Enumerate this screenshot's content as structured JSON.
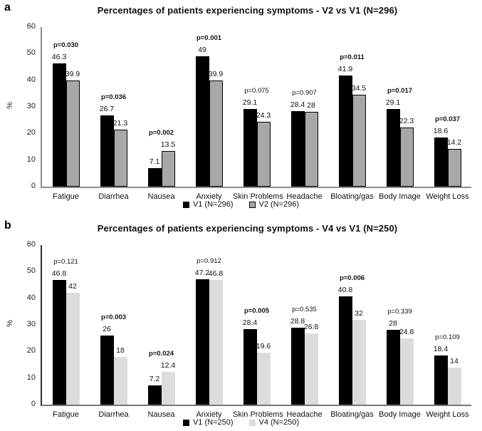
{
  "chart_data": [
    {
      "type": "bar",
      "panel_letter": "a",
      "title": "Percentages of patients experiencing symptoms - V2 vs V1 (N=296)",
      "ylabel": "%",
      "ylim": [
        0,
        60
      ],
      "yticks": [
        0,
        10,
        20,
        30,
        40,
        50,
        60
      ],
      "grid": false,
      "legend_position": "bottom",
      "categories": [
        "Fatigue",
        "Diarrhea",
        "Nausea",
        "Anxiety",
        "Skin Problems",
        "Headache",
        "Bloating/gas",
        "Body Image",
        "Weight Loss"
      ],
      "series": [
        {
          "name": "V1 (N=296)",
          "color": "#000000",
          "border_color": "#000000",
          "values": [
            46.3,
            26.7,
            7.1,
            49,
            29.1,
            28.4,
            41.9,
            29.1,
            18.6
          ],
          "value_labels": [
            "46.3",
            "26.7",
            "7.1",
            "49",
            "29.1",
            "28.4",
            "41.9",
            "29.1",
            "18.6"
          ]
        },
        {
          "name": "V2 (N=296)",
          "color": "#a8a8a8",
          "border_color": "#000000",
          "values": [
            39.9,
            21.3,
            13.5,
            39.9,
            24.3,
            28,
            34.5,
            22.3,
            14.2
          ],
          "value_labels": [
            "39.9",
            "21.3",
            "13.5",
            "39.9",
            "24.3",
            "28",
            "34.5",
            "22.3",
            "14.2"
          ]
        }
      ],
      "p_values": [
        {
          "text": "p=0.030",
          "bold": true
        },
        {
          "text": "p=0.036",
          "bold": true
        },
        {
          "text": "p=0.002",
          "bold": true
        },
        {
          "text": "p=0.001",
          "bold": true
        },
        {
          "text": "p=0.075",
          "bold": false
        },
        {
          "text": "p=0.907",
          "bold": false
        },
        {
          "text": "p=0.011",
          "bold": true
        },
        {
          "text": "p=0.017",
          "bold": true
        },
        {
          "text": "p=0.037",
          "bold": true
        }
      ]
    },
    {
      "type": "bar",
      "panel_letter": "b",
      "title": "Percentages of patients experiencing symptoms - V4 vs V1 (N=250)",
      "ylabel": "%",
      "ylim": [
        0,
        60
      ],
      "yticks": [
        0,
        10,
        20,
        30,
        40,
        50,
        60
      ],
      "grid": false,
      "legend_position": "bottom",
      "categories": [
        "Fatigue",
        "Diarrhea",
        "Nausea",
        "Anxiety",
        "Skin Problems",
        "Headache",
        "Bloating/gas",
        "Body Image",
        "Weight Loss"
      ],
      "series": [
        {
          "name": "V1 (N=250)",
          "color": "#000000",
          "border_color": "#000000",
          "values": [
            46.8,
            26,
            7.2,
            47.2,
            28.4,
            28.8,
            40.8,
            28,
            18.4
          ],
          "value_labels": [
            "46.8",
            "26",
            "7.2",
            "47.2",
            "28.4",
            "28.8",
            "40.8",
            "28",
            "18.4"
          ]
        },
        {
          "name": "V4 (N=250)",
          "color": "#dcdcdc",
          "border_color": null,
          "values": [
            42,
            18,
            12.4,
            46.8,
            19.6,
            26.8,
            32,
            24.8,
            14
          ],
          "value_labels": [
            "42",
            "18",
            "12.4",
            "46.8",
            "19.6",
            "26.8",
            "32",
            "24.8",
            "14"
          ]
        }
      ],
      "p_values": [
        {
          "text": "p=0.121",
          "bold": false
        },
        {
          "text": "p=0.003",
          "bold": true
        },
        {
          "text": "p=0.024",
          "bold": true
        },
        {
          "text": "p=0.912",
          "bold": false
        },
        {
          "text": "p=0.005",
          "bold": true
        },
        {
          "text": "p=0.535",
          "bold": false
        },
        {
          "text": "p=0.006",
          "bold": true
        },
        {
          "text": "p=0.339",
          "bold": false
        },
        {
          "text": "p=0.109",
          "bold": false
        }
      ]
    }
  ]
}
